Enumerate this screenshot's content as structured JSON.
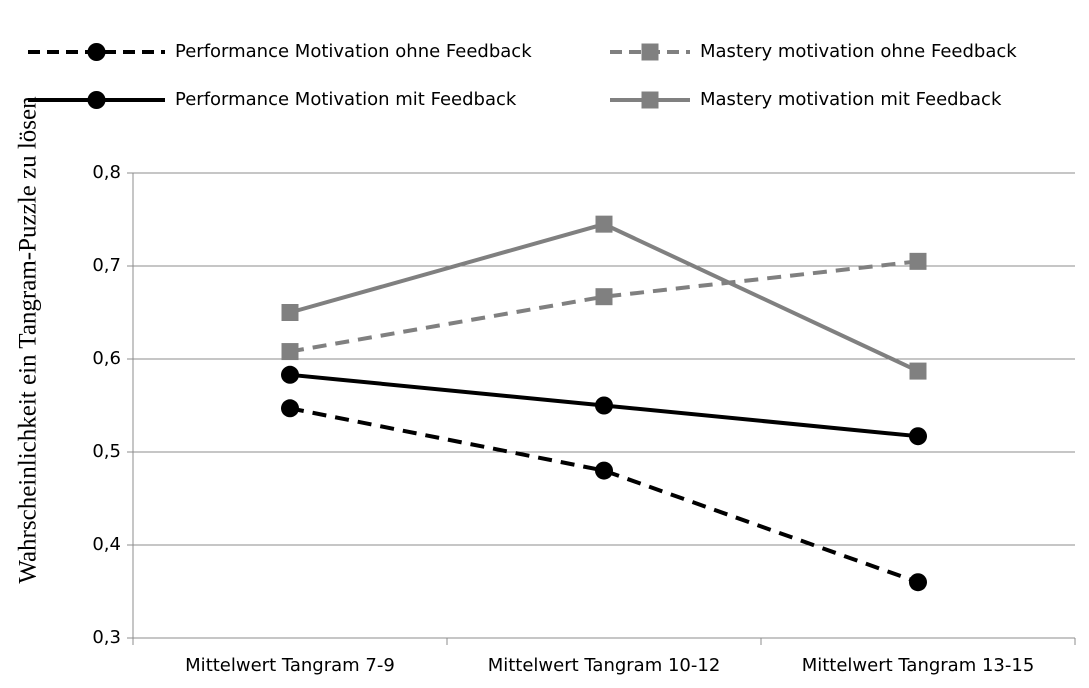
{
  "chart_data": {
    "type": "line",
    "y_label": "Wahrscheinlichkeit ein Tangram-Puzzle zu lösen",
    "categories": [
      "Mittelwert Tangram 7-9",
      "Mittelwert Tangram 10-12",
      "Mittelwert Tangram 13-15"
    ],
    "series": [
      {
        "name": "Performance Motivation ohne Feedback",
        "color": "#000000",
        "dashed": true,
        "marker": "circle",
        "values": [
          0.547,
          0.48,
          0.36
        ]
      },
      {
        "name": "Mastery motivation ohne Feedback",
        "color": "#808080",
        "dashed": true,
        "marker": "square",
        "values": [
          0.608,
          0.667,
          0.705
        ]
      },
      {
        "name": "Performance Motivation mit Feedback",
        "color": "#000000",
        "dashed": false,
        "marker": "circle",
        "values": [
          0.583,
          0.55,
          0.517
        ]
      },
      {
        "name": "Mastery motivation mit Feedback",
        "color": "#808080",
        "dashed": false,
        "marker": "square",
        "values": [
          0.65,
          0.745,
          0.587
        ]
      }
    ],
    "ylim": [
      0.3,
      0.8
    ],
    "yticks": [
      {
        "value": 0.3,
        "label": "0,3"
      },
      {
        "value": 0.4,
        "label": "0,4"
      },
      {
        "value": 0.5,
        "label": "0,5"
      },
      {
        "value": 0.6,
        "label": "0,6"
      },
      {
        "value": 0.7,
        "label": "0,7"
      },
      {
        "value": 0.8,
        "label": "0,8"
      }
    ],
    "grid": true,
    "legend": "top"
  }
}
